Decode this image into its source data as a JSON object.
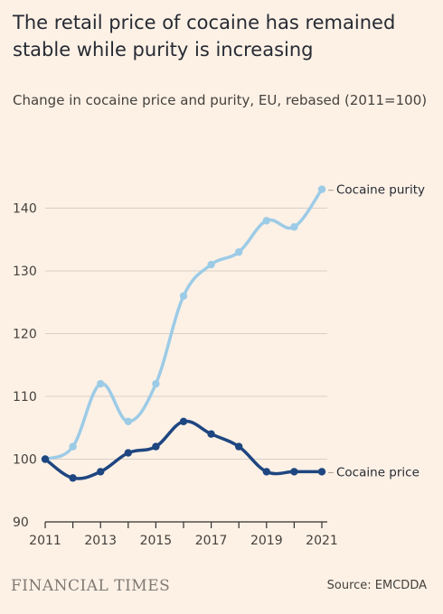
{
  "header": {
    "title": "The retail price of cocaine has remained stable while purity is increasing",
    "subtitle": "Change in cocaine price and purity, EU, rebased (2011=100)"
  },
  "footer": {
    "brand": "FINANCIAL TIMES",
    "source": "Source: EMCDDA"
  },
  "colors": {
    "background": "#fdf1e6",
    "purity": "#9ccbe6",
    "price": "#1e4680",
    "grid": "#d8cec6",
    "axis": "#33302e"
  },
  "chart_data": {
    "type": "line",
    "title": "The retail price of cocaine has remained stable while purity is increasing",
    "subtitle": "Change in cocaine price and purity, EU, rebased (2011=100)",
    "xlabel": "",
    "ylabel": "",
    "x": [
      2011,
      2012,
      2013,
      2014,
      2015,
      2016,
      2017,
      2018,
      2019,
      2020,
      2021
    ],
    "xticks": [
      "2011",
      "2013",
      "2015",
      "2017",
      "2019",
      "2021"
    ],
    "yticks": [
      "90",
      "100",
      "110",
      "120",
      "130",
      "140"
    ],
    "ylim": [
      90,
      147
    ],
    "xlim": [
      2011,
      2021
    ],
    "grid": "horizontal",
    "legend": "direct labels at line ends (right)",
    "series": [
      {
        "name": "Cocaine purity",
        "color": "#9ccbe6",
        "values": [
          100,
          102,
          112,
          106,
          112,
          126,
          131,
          133,
          138,
          137,
          143
        ]
      },
      {
        "name": "Cocaine price",
        "color": "#1e4680",
        "values": [
          100,
          97,
          98,
          101,
          102,
          106,
          104,
          102,
          98,
          98,
          98
        ]
      }
    ]
  }
}
